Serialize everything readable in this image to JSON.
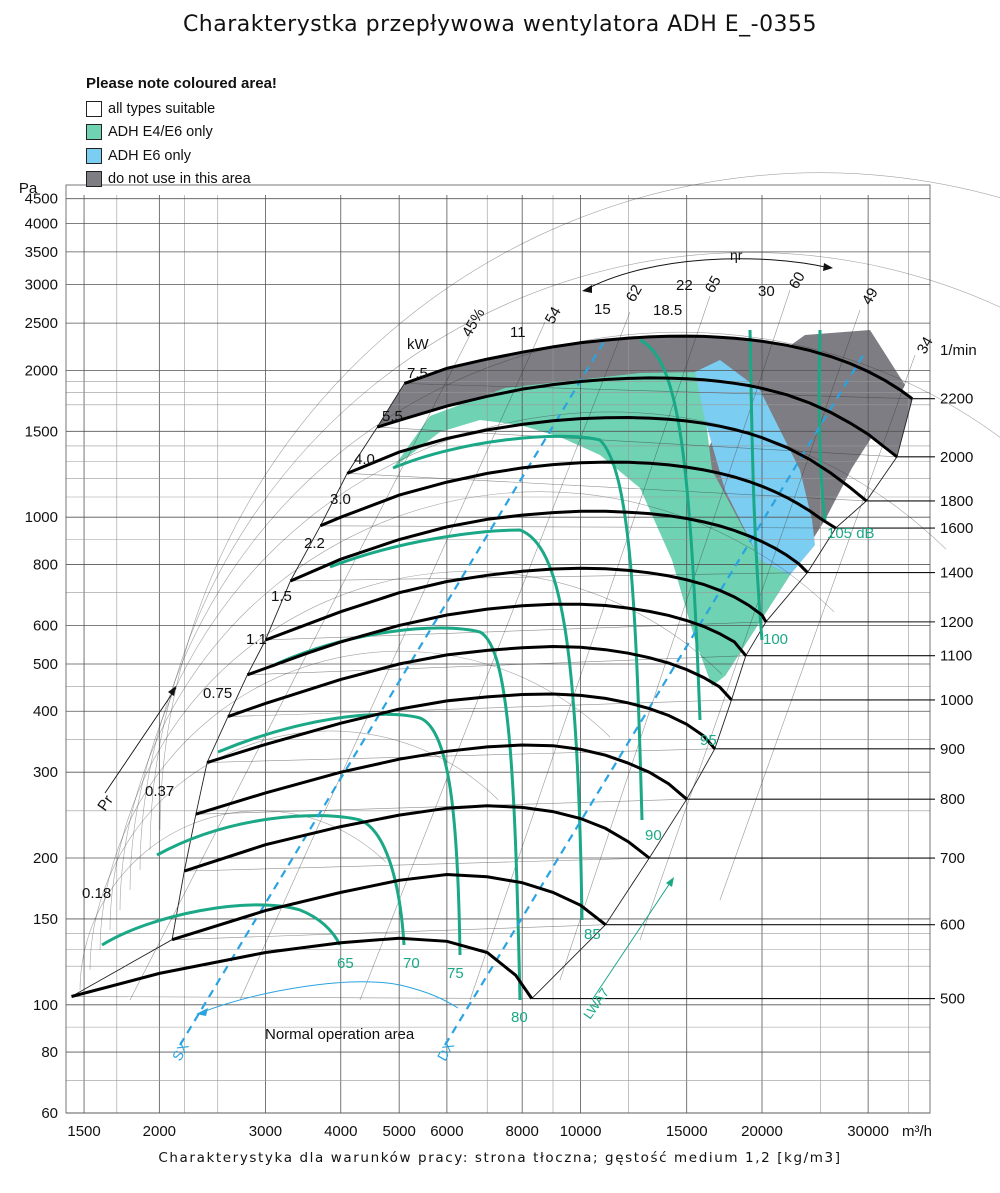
{
  "title": "Charakterystka przepływowa wentylatora ADH E_-0355",
  "footer": "Charakterystyka dla warunków pracy: strona tłoczna; gęstość medium 1,2 [kg/m3]",
  "legend": {
    "heading": "Please note coloured area!",
    "items": [
      {
        "label": "all types suitable",
        "color": "#ffffff"
      },
      {
        "label": "ADH E4/E6 only",
        "color": "#6fd2b3"
      },
      {
        "label": "ADH E6 only",
        "color": "#7ccdf2"
      },
      {
        "label": "do not use in this area",
        "color": "#7d7d83"
      }
    ]
  },
  "chart_data": {
    "type": "line",
    "title": "Charakterystka przepływowa wentylatora ADH E_-0355",
    "x_axis": {
      "unit_label": "m³/h",
      "scale": "log",
      "range": [
        1400,
        38000
      ],
      "ticks": [
        1500,
        2000,
        3000,
        4000,
        5000,
        6000,
        8000,
        10000,
        15000,
        20000,
        30000
      ]
    },
    "y_axis": {
      "unit_label": "Pa",
      "scale": "log",
      "range": [
        60,
        4800
      ],
      "ticks": [
        60,
        80,
        100,
        150,
        200,
        300,
        400,
        500,
        600,
        800,
        1000,
        1500,
        2000,
        2500,
        3000,
        3500,
        4000,
        4500
      ]
    },
    "grid": true,
    "speed_axis": {
      "label": "1/min",
      "values": [
        500,
        600,
        700,
        800,
        900,
        1000,
        1100,
        1200,
        1400,
        1600,
        1800,
        2000,
        2200
      ]
    },
    "power_label": "kW",
    "power_values": [
      "0.18",
      "0.37",
      "0.75",
      "1.1",
      "1.5",
      "2.2",
      "3.0",
      "4.0",
      "5.5",
      "7.5",
      "11",
      "15",
      "18.5",
      "22",
      "30"
    ],
    "efficiency_symbol": "ηr",
    "efficiency_values": [
      "45%",
      "54",
      "62",
      "65",
      "60",
      "49",
      "34"
    ],
    "sound_labels": [
      "65",
      "70",
      "75",
      "80",
      "85",
      "90",
      "95",
      "100",
      "105 dB"
    ],
    "sound_axis_label": "LWA7",
    "pressure_axis_label": "Pr",
    "system_lines": [
      "SX",
      "DX"
    ],
    "area_label": "Normal operation area",
    "series": [
      {
        "rpm": 500,
        "points": [
          [
            1430,
            104
          ],
          [
            2000,
            116
          ],
          [
            3000,
            128
          ],
          [
            4000,
            134
          ],
          [
            5000,
            137
          ],
          [
            6000,
            135
          ],
          [
            7000,
            128
          ],
          [
            7800,
            115
          ],
          [
            8300,
            103
          ]
        ]
      },
      {
        "rpm": 600,
        "points": [
          [
            2100,
            136
          ],
          [
            3000,
            156
          ],
          [
            4000,
            170
          ],
          [
            5000,
            180
          ],
          [
            6000,
            185
          ],
          [
            7000,
            183
          ],
          [
            8000,
            178
          ],
          [
            9000,
            170
          ],
          [
            10000,
            160
          ],
          [
            11000,
            146
          ]
        ]
      },
      {
        "rpm": 700,
        "points": [
          [
            2200,
            188
          ],
          [
            3000,
            213
          ],
          [
            4000,
            232
          ],
          [
            5000,
            245
          ],
          [
            6000,
            253
          ],
          [
            7000,
            256
          ],
          [
            8000,
            254
          ],
          [
            9000,
            249
          ],
          [
            10000,
            241
          ],
          [
            11000,
            230
          ],
          [
            12000,
            216
          ],
          [
            13000,
            200
          ]
        ]
      },
      {
        "rpm": 800,
        "points": [
          [
            2300,
            246
          ],
          [
            3000,
            272
          ],
          [
            4000,
            300
          ],
          [
            5000,
            319
          ],
          [
            6000,
            331
          ],
          [
            7000,
            338
          ],
          [
            8000,
            341
          ],
          [
            9000,
            340
          ],
          [
            10000,
            334
          ],
          [
            11000,
            325
          ],
          [
            12000,
            313
          ],
          [
            13000,
            300
          ],
          [
            14000,
            284
          ],
          [
            15000,
            264
          ]
        ]
      },
      {
        "rpm": 900,
        "points": [
          [
            2400,
            314
          ],
          [
            3000,
            342
          ],
          [
            4000,
            378
          ],
          [
            5000,
            404
          ],
          [
            6000,
            420
          ],
          [
            7000,
            428
          ],
          [
            8000,
            433
          ],
          [
            9000,
            434
          ],
          [
            10000,
            431
          ],
          [
            11000,
            425
          ],
          [
            12000,
            416
          ],
          [
            13000,
            405
          ],
          [
            14000,
            392
          ],
          [
            15000,
            376
          ],
          [
            16000,
            356
          ],
          [
            16700,
            335
          ]
        ]
      },
      {
        "rpm": 1000,
        "points": [
          [
            2600,
            390
          ],
          [
            3000,
            415
          ],
          [
            4000,
            465
          ],
          [
            5000,
            500
          ],
          [
            6000,
            522
          ],
          [
            7000,
            533
          ],
          [
            8000,
            540
          ],
          [
            9000,
            543
          ],
          [
            10000,
            541
          ],
          [
            11000,
            535
          ],
          [
            12000,
            526
          ],
          [
            13000,
            515
          ],
          [
            14000,
            502
          ],
          [
            15000,
            487
          ],
          [
            16000,
            469
          ],
          [
            17000,
            449
          ],
          [
            17800,
            422
          ]
        ]
      },
      {
        "rpm": 1100,
        "points": [
          [
            2800,
            475
          ],
          [
            3500,
            525
          ],
          [
            4000,
            555
          ],
          [
            5000,
            600
          ],
          [
            6000,
            630
          ],
          [
            7000,
            648
          ],
          [
            8000,
            658
          ],
          [
            9000,
            663
          ],
          [
            10000,
            663
          ],
          [
            11000,
            659
          ],
          [
            12000,
            651
          ],
          [
            13000,
            641
          ],
          [
            14000,
            629
          ],
          [
            15000,
            614
          ],
          [
            16000,
            597
          ],
          [
            17000,
            577
          ],
          [
            18000,
            555
          ],
          [
            18800,
            520
          ]
        ]
      },
      {
        "rpm": 1200,
        "points": [
          [
            3000,
            560
          ],
          [
            4000,
            640
          ],
          [
            5000,
            700
          ],
          [
            6000,
            738
          ],
          [
            7000,
            760
          ],
          [
            8000,
            775
          ],
          [
            9000,
            783
          ],
          [
            10000,
            786
          ],
          [
            11000,
            784
          ],
          [
            12000,
            778
          ],
          [
            13000,
            769
          ],
          [
            14000,
            758
          ],
          [
            15000,
            744
          ],
          [
            16000,
            728
          ],
          [
            17000,
            708
          ],
          [
            18000,
            686
          ],
          [
            19000,
            660
          ],
          [
            20000,
            630
          ],
          [
            20300,
            610
          ]
        ]
      },
      {
        "rpm": 1400,
        "points": [
          [
            3300,
            740
          ],
          [
            4000,
            820
          ],
          [
            5000,
            900
          ],
          [
            6000,
            955
          ],
          [
            7000,
            990
          ],
          [
            8000,
            1010
          ],
          [
            9000,
            1022
          ],
          [
            10000,
            1028
          ],
          [
            11000,
            1028
          ],
          [
            12000,
            1024
          ],
          [
            13000,
            1017
          ],
          [
            14000,
            1007
          ],
          [
            15000,
            994
          ],
          [
            16000,
            978
          ],
          [
            17000,
            960
          ],
          [
            18000,
            939
          ],
          [
            19000,
            916
          ],
          [
            20000,
            891
          ],
          [
            21000,
            864
          ],
          [
            22000,
            835
          ],
          [
            23000,
            803
          ],
          [
            23800,
            770
          ]
        ]
      },
      {
        "rpm": 1600,
        "points": [
          [
            3700,
            960
          ],
          [
            4000,
            1000
          ],
          [
            5000,
            1110
          ],
          [
            6000,
            1180
          ],
          [
            7000,
            1230
          ],
          [
            8000,
            1262
          ],
          [
            9000,
            1282
          ],
          [
            10000,
            1293
          ],
          [
            11000,
            1297
          ],
          [
            12000,
            1296
          ],
          [
            13000,
            1290
          ],
          [
            14000,
            1280
          ],
          [
            15000,
            1267
          ],
          [
            16000,
            1250
          ],
          [
            17000,
            1231
          ],
          [
            18000,
            1209
          ],
          [
            19000,
            1184
          ],
          [
            20000,
            1157
          ],
          [
            21000,
            1128
          ],
          [
            22000,
            1097
          ],
          [
            23000,
            1064
          ],
          [
            24000,
            1030
          ],
          [
            25000,
            994
          ],
          [
            26500,
            950
          ]
        ]
      },
      {
        "rpm": 1800,
        "points": [
          [
            4100,
            1230
          ],
          [
            5000,
            1360
          ],
          [
            6000,
            1450
          ],
          [
            7000,
            1510
          ],
          [
            8000,
            1550
          ],
          [
            9000,
            1577
          ],
          [
            10000,
            1593
          ],
          [
            11000,
            1600
          ],
          [
            12000,
            1601
          ],
          [
            13000,
            1597
          ],
          [
            14000,
            1588
          ],
          [
            15000,
            1575
          ],
          [
            16000,
            1558
          ],
          [
            17000,
            1537
          ],
          [
            18000,
            1513
          ],
          [
            19000,
            1486
          ],
          [
            20000,
            1456
          ],
          [
            22000,
            1389
          ],
          [
            24000,
            1314
          ],
          [
            26000,
            1232
          ],
          [
            28000,
            1150
          ],
          [
            29800,
            1080
          ]
        ]
      },
      {
        "rpm": 2000,
        "points": [
          [
            4600,
            1530
          ],
          [
            5000,
            1580
          ],
          [
            6000,
            1690
          ],
          [
            7000,
            1770
          ],
          [
            8000,
            1830
          ],
          [
            9000,
            1870
          ],
          [
            10000,
            1898
          ],
          [
            11000,
            1916
          ],
          [
            12000,
            1926
          ],
          [
            13000,
            1930
          ],
          [
            14000,
            1929
          ],
          [
            15000,
            1923
          ],
          [
            16000,
            1913
          ],
          [
            17000,
            1899
          ],
          [
            18000,
            1882
          ],
          [
            19000,
            1862
          ],
          [
            20000,
            1838
          ],
          [
            22000,
            1782
          ],
          [
            24000,
            1715
          ],
          [
            26000,
            1640
          ],
          [
            28000,
            1560
          ],
          [
            30000,
            1480
          ],
          [
            32000,
            1390
          ],
          [
            33500,
            1330
          ]
        ]
      },
      {
        "rpm": 2200,
        "points": [
          [
            5100,
            1880
          ],
          [
            6000,
            2020
          ],
          [
            7000,
            2110
          ],
          [
            8000,
            2180
          ],
          [
            9000,
            2235
          ],
          [
            10000,
            2278
          ],
          [
            11000,
            2308
          ],
          [
            12000,
            2330
          ],
          [
            13000,
            2343
          ],
          [
            14000,
            2350
          ],
          [
            15000,
            2352
          ],
          [
            16000,
            2348
          ],
          [
            17000,
            2340
          ],
          [
            18000,
            2328
          ],
          [
            19000,
            2313
          ],
          [
            20000,
            2296
          ],
          [
            22000,
            2252
          ],
          [
            24000,
            2198
          ],
          [
            26000,
            2136
          ],
          [
            28000,
            2066
          ],
          [
            30000,
            1990
          ],
          [
            32000,
            1908
          ],
          [
            34000,
            1820
          ],
          [
            35500,
            1750
          ]
        ]
      }
    ]
  }
}
